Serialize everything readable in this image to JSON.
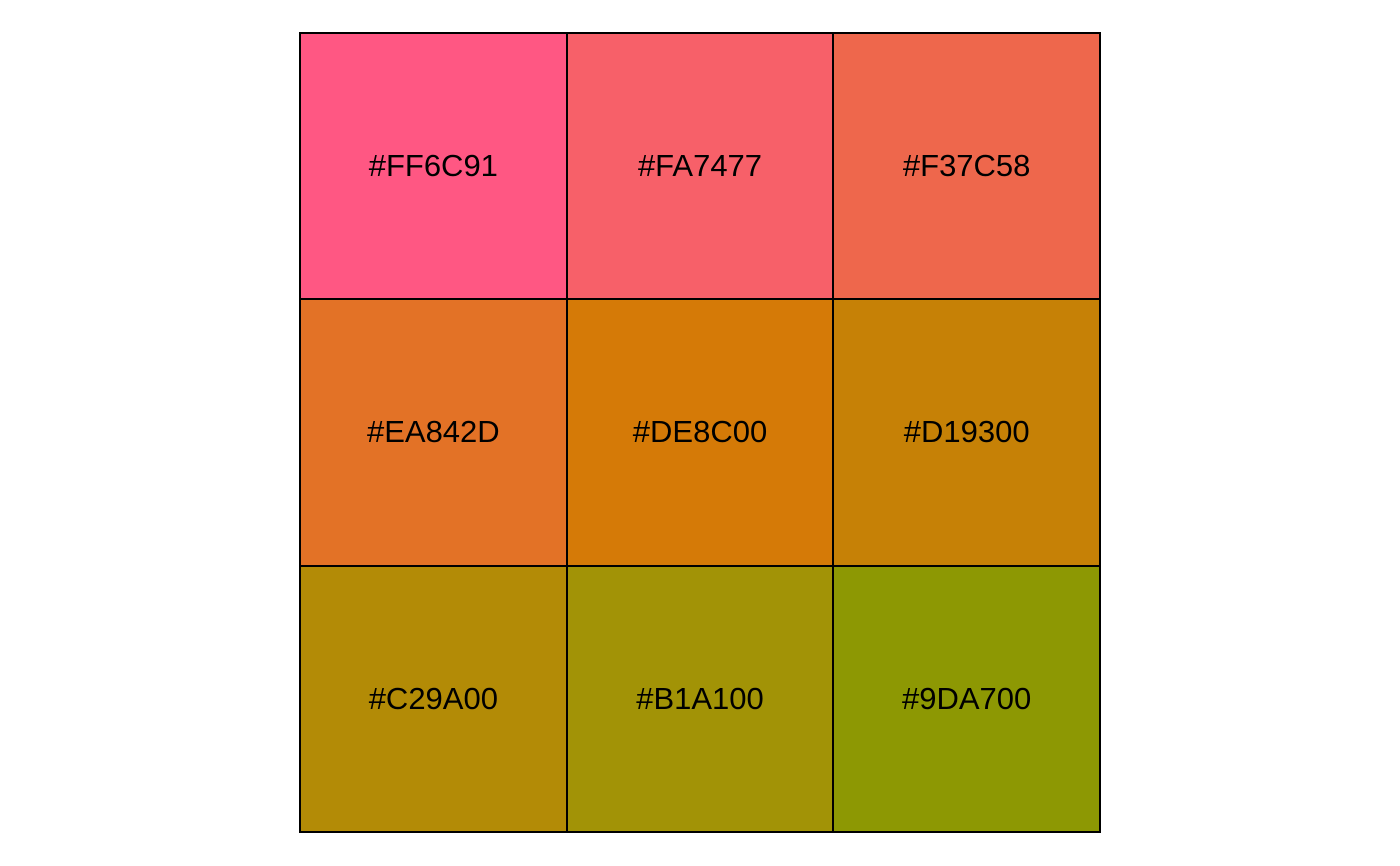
{
  "palette": {
    "swatches": [
      {
        "label": "#FF6C91",
        "color": "#FF5783"
      },
      {
        "label": "#FA7477",
        "color": "#F76069"
      },
      {
        "label": "#F37C58",
        "color": "#EE674C"
      },
      {
        "label": "#EA842D",
        "color": "#E37226"
      },
      {
        "label": "#DE8C00",
        "color": "#D57A07"
      },
      {
        "label": "#D19300",
        "color": "#C68106"
      },
      {
        "label": "#C29A00",
        "color": "#B38B06"
      },
      {
        "label": "#B1A100",
        "color": "#A29306"
      },
      {
        "label": "#9DA700",
        "color": "#8D9803"
      }
    ]
  }
}
